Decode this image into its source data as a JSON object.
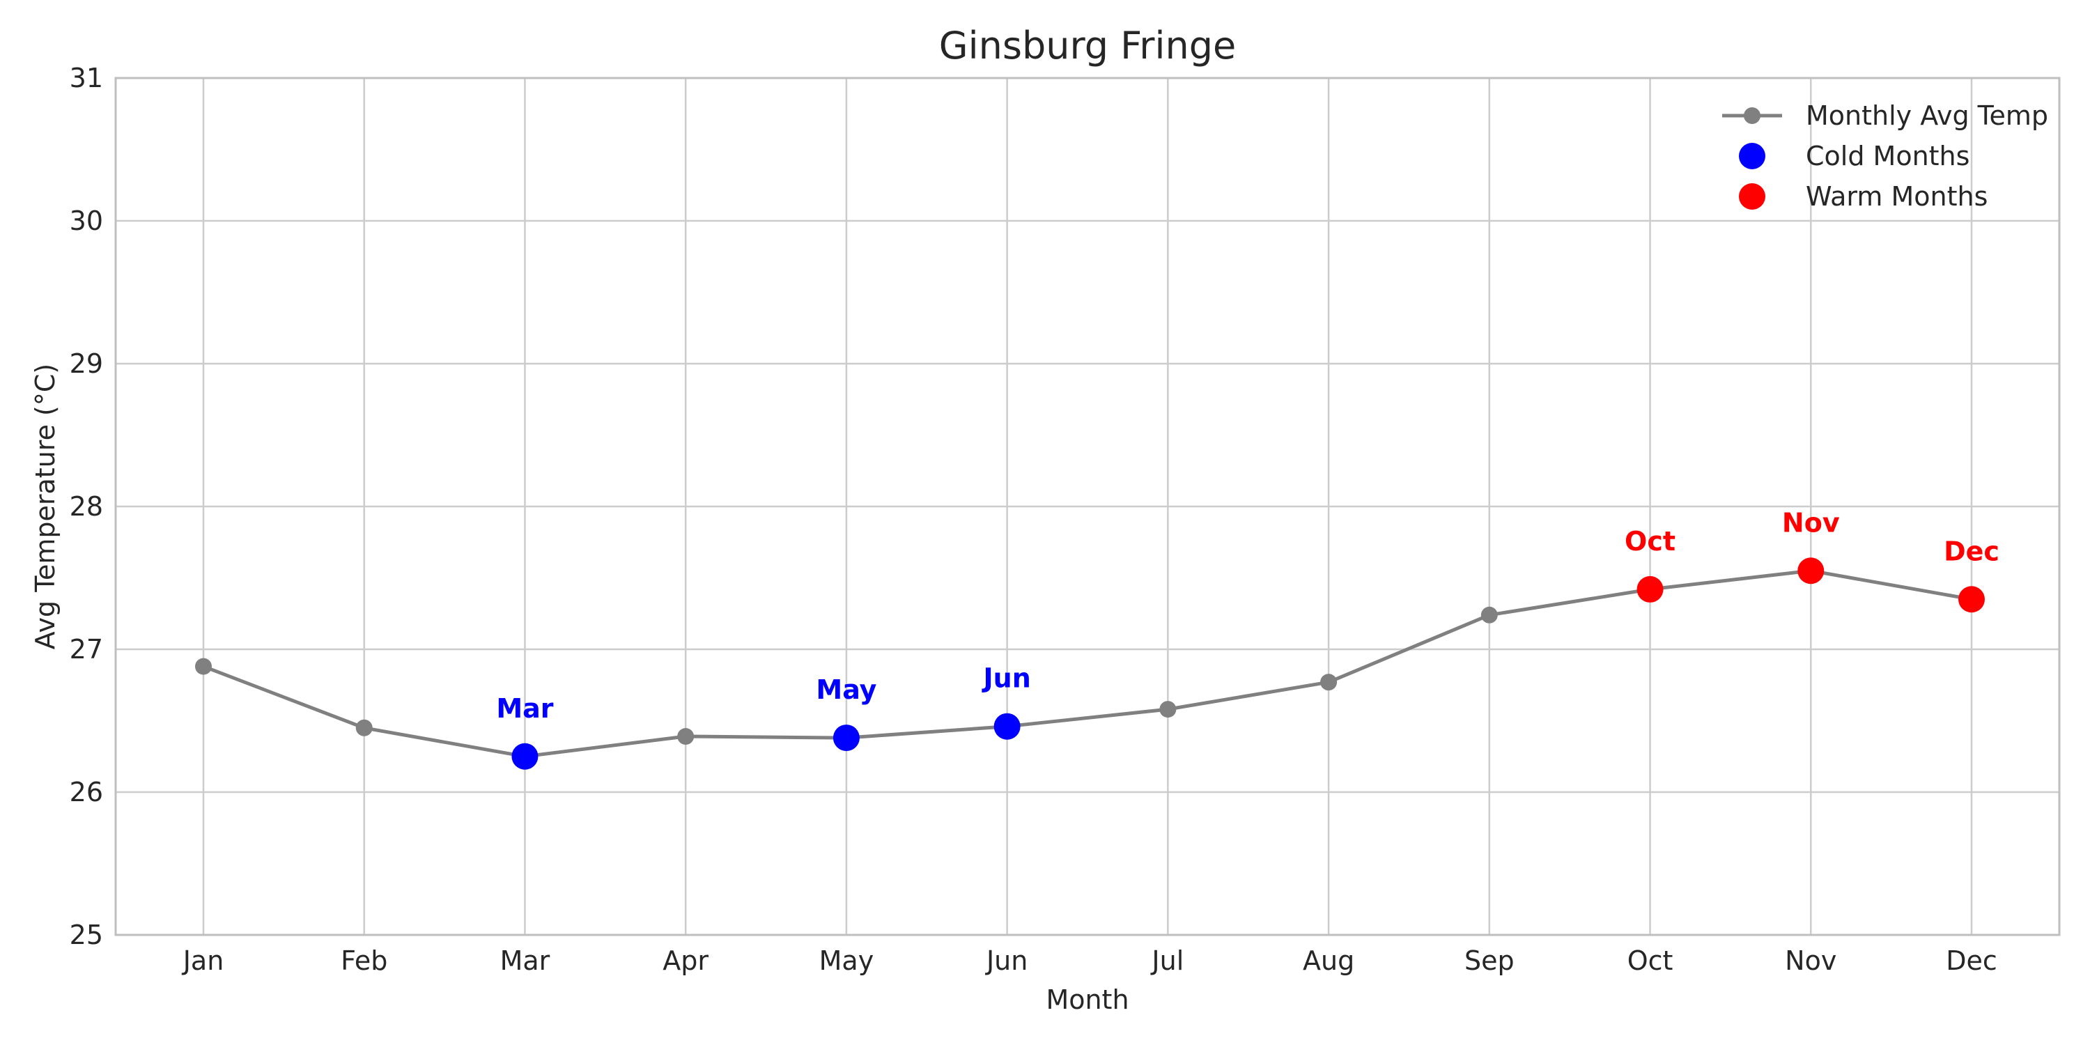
{
  "chart_data": {
    "type": "line",
    "title": "Ginsburg Fringe",
    "xlabel": "Month",
    "ylabel": "Avg Temperature (°C)",
    "categories": [
      "Jan",
      "Feb",
      "Mar",
      "Apr",
      "May",
      "Jun",
      "Jul",
      "Aug",
      "Sep",
      "Oct",
      "Nov",
      "Dec"
    ],
    "ylim": [
      25,
      31
    ],
    "yticks": [
      25,
      26,
      27,
      28,
      29,
      30,
      31
    ],
    "grid": true,
    "legend_position": "top-right",
    "series": [
      {
        "name": "Monthly Avg Temp",
        "values": [
          26.88,
          26.45,
          26.25,
          26.39,
          26.38,
          26.46,
          26.58,
          26.77,
          27.24,
          27.42,
          27.55,
          27.35
        ],
        "color": "#808080"
      }
    ],
    "highlights": [
      {
        "name": "Cold Months",
        "color": "#0000ff",
        "categories": [
          "Mar",
          "May",
          "Jun"
        ]
      },
      {
        "name": "Warm Months",
        "color": "#ff0000",
        "categories": [
          "Oct",
          "Nov",
          "Dec"
        ]
      }
    ]
  }
}
